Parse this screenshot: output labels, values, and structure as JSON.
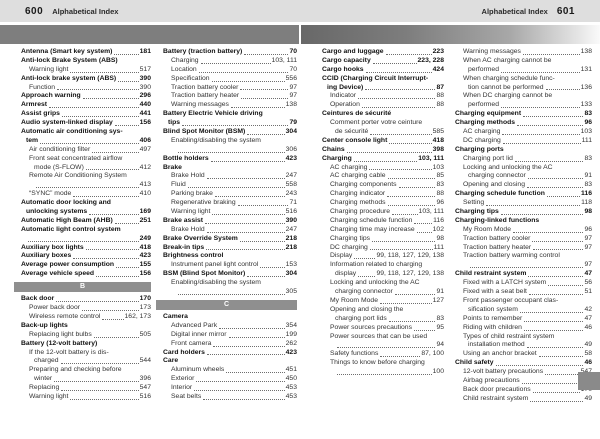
{
  "header": {
    "left_page_number": "600",
    "left_title": "Alphabetical Index",
    "right_title": "Alphabetical Index",
    "right_page_number": "601"
  },
  "colors": {
    "header_strip_bg": "#dedede",
    "band_left_gray": "#7e7e7e",
    "band_right_gradient_start": "#686868",
    "section_bar_gray": "#8f8f8f",
    "thumb_tab_gray": "#8a8a8a",
    "text_color": "#222222"
  },
  "sections_visible": [
    "B",
    "C"
  ],
  "columns": [
    [
      {
        "t": "Antenna (Smart key system)",
        "p": "181",
        "b": 1,
        "i": 0
      },
      {
        "t": "Anti-lock Brake System (ABS)",
        "b": 1,
        "i": 0
      },
      {
        "t": "Warning light",
        "p": "517",
        "b": 0,
        "i": 2
      },
      {
        "t": "Anti-lock brake system (ABS)",
        "p": "390",
        "b": 1,
        "i": 0
      },
      {
        "t": "Function",
        "p": "390",
        "b": 0,
        "i": 2
      },
      {
        "t": "Approach warning",
        "p": "296",
        "b": 1,
        "i": 0
      },
      {
        "t": "Armrest",
        "p": "440",
        "b": 1,
        "i": 0
      },
      {
        "t": "Assist grips",
        "p": "441",
        "b": 1,
        "i": 0
      },
      {
        "t": "Audio system-linked display",
        "p": "156",
        "b": 1,
        "i": 0
      },
      {
        "t": "Automatic air conditioning sys-",
        "b": 1,
        "i": 0
      },
      {
        "t": "tem",
        "p": "406",
        "b": 1,
        "i": 1
      },
      {
        "t": "Air conditioning filter",
        "p": "497",
        "b": 0,
        "i": 2
      },
      {
        "t": "Front seat concentrated airflow",
        "b": 0,
        "i": 2
      },
      {
        "t": "mode (S-FLOW)",
        "p": "412",
        "b": 0,
        "i": 3
      },
      {
        "t": "Remote Air Conditioning System",
        "b": 0,
        "i": 2
      },
      {
        "t": "",
        "p": "413",
        "b": 0,
        "i": 3
      },
      {
        "t": "“SYNC” mode",
        "p": "410",
        "b": 0,
        "i": 2
      },
      {
        "t": "Automatic door locking and",
        "b": 1,
        "i": 0
      },
      {
        "t": "unlocking systems",
        "p": "169",
        "b": 1,
        "i": 1
      },
      {
        "t": "Automatic High Beam (AHB)",
        "p": "251",
        "b": 1,
        "i": 0
      },
      {
        "t": "Automatic light control system",
        "b": 1,
        "i": 0
      },
      {
        "t": "",
        "p": "249",
        "b": 1,
        "i": 1
      },
      {
        "t": "Auxiliary box lights",
        "p": "418",
        "b": 1,
        "i": 0
      },
      {
        "t": "Auxiliary boxes",
        "p": "423",
        "b": 1,
        "i": 0
      },
      {
        "t": "Average power consumption",
        "p": "155",
        "b": 1,
        "i": 0
      },
      {
        "t": "Average vehicle speed",
        "p": "156",
        "b": 1,
        "i": 0
      },
      {
        "sec": "B"
      },
      {
        "t": "Back door",
        "p": "170",
        "b": 1,
        "i": 0
      },
      {
        "t": "Power back door",
        "p": "173",
        "b": 0,
        "i": 2
      },
      {
        "t": "Wireless remote control",
        "p": "162, 173",
        "b": 0,
        "i": 2
      },
      {
        "t": "Back-up lights",
        "b": 1,
        "i": 0
      },
      {
        "t": "Replacing light bulbs",
        "p": "505",
        "b": 0,
        "i": 2
      },
      {
        "t": "Battery (12-volt battery)",
        "b": 1,
        "i": 0
      },
      {
        "t": "If the 12-volt battery is dis-",
        "b": 0,
        "i": 2
      },
      {
        "t": "charged",
        "p": "544",
        "b": 0,
        "i": 3
      },
      {
        "t": "Preparing and checking before",
        "b": 0,
        "i": 2
      },
      {
        "t": "winter",
        "p": "396",
        "b": 0,
        "i": 3
      },
      {
        "t": "Replacing",
        "p": "547",
        "b": 0,
        "i": 2
      },
      {
        "t": "Warning light",
        "p": "516",
        "b": 0,
        "i": 2
      }
    ],
    [
      {
        "t": "Battery (traction battery)",
        "p": "70",
        "b": 1,
        "i": 0
      },
      {
        "t": "Charging",
        "p": "103, 111",
        "b": 0,
        "i": 2
      },
      {
        "t": "Location",
        "p": "70",
        "b": 0,
        "i": 2
      },
      {
        "t": "Specification",
        "p": "556",
        "b": 0,
        "i": 2
      },
      {
        "t": "Traction battery cooler",
        "p": "97",
        "b": 0,
        "i": 2
      },
      {
        "t": "Traction battery heater",
        "p": "97",
        "b": 0,
        "i": 2
      },
      {
        "t": "Warning messages",
        "p": "138",
        "b": 0,
        "i": 2
      },
      {
        "t": "Battery Electric Vehicle driving",
        "b": 1,
        "i": 0
      },
      {
        "t": "tips",
        "p": "79",
        "b": 1,
        "i": 1
      },
      {
        "t": "Blind Spot Monitor (BSM)",
        "p": "304",
        "b": 1,
        "i": 0
      },
      {
        "t": "Enabling/disabling the system",
        "b": 0,
        "i": 2
      },
      {
        "t": "",
        "p": "306",
        "b": 0,
        "i": 3
      },
      {
        "t": "Bottle holders",
        "p": "423",
        "b": 1,
        "i": 0
      },
      {
        "t": "Brake",
        "b": 1,
        "i": 0
      },
      {
        "t": "Brake Hold",
        "p": "247",
        "b": 0,
        "i": 2
      },
      {
        "t": "Fluid",
        "p": "558",
        "b": 0,
        "i": 2
      },
      {
        "t": "Parking brake",
        "p": "243",
        "b": 0,
        "i": 2
      },
      {
        "t": "Regenerative braking",
        "p": "71",
        "b": 0,
        "i": 2
      },
      {
        "t": "Warning light",
        "p": "516",
        "b": 0,
        "i": 2
      },
      {
        "t": "Brake assist",
        "p": "390",
        "b": 1,
        "i": 0
      },
      {
        "t": "Brake Hold",
        "p": "247",
        "b": 0,
        "i": 2
      },
      {
        "t": "Brake Override System",
        "p": "218",
        "b": 1,
        "i": 0
      },
      {
        "t": "Break-in tips",
        "p": "218",
        "b": 1,
        "i": 0
      },
      {
        "t": "Brightness control",
        "b": 1,
        "i": 0
      },
      {
        "t": "Instrument panel light control",
        "p": "153",
        "b": 0,
        "i": 2
      },
      {
        "t": "BSM (Blind Spot Monitor)",
        "p": "304",
        "b": 1,
        "i": 0
      },
      {
        "t": "Enabling/disabling the system",
        "b": 0,
        "i": 2
      },
      {
        "t": "",
        "p": "305",
        "b": 0,
        "i": 3
      },
      {
        "sec": "C"
      },
      {
        "t": "Camera",
        "b": 1,
        "i": 0
      },
      {
        "t": "Advanced Park",
        "p": "354",
        "b": 0,
        "i": 2
      },
      {
        "t": "Digital inner mirror",
        "p": "199",
        "b": 0,
        "i": 2
      },
      {
        "t": "Front camera",
        "p": "262",
        "b": 0,
        "i": 2
      },
      {
        "t": "Card holders",
        "p": "423",
        "b": 1,
        "i": 0
      },
      {
        "t": "Care",
        "b": 1,
        "i": 0
      },
      {
        "t": "Aluminum wheels",
        "p": "451",
        "b": 0,
        "i": 2
      },
      {
        "t": "Exterior",
        "p": "450",
        "b": 0,
        "i": 2
      },
      {
        "t": "Interior",
        "p": "453",
        "b": 0,
        "i": 2
      },
      {
        "t": "Seat belts",
        "p": "453",
        "b": 0,
        "i": 2
      }
    ],
    [
      {
        "t": "Cargo and luggage",
        "p": "223",
        "b": 1,
        "i": 0
      },
      {
        "t": "Cargo capacity",
        "p": "223, 228",
        "b": 1,
        "i": 0
      },
      {
        "t": "Cargo hooks",
        "p": "424",
        "b": 1,
        "i": 0
      },
      {
        "t": "CCID (Charging Circuit Interrupt-",
        "b": 1,
        "i": 0
      },
      {
        "t": "ing Device)",
        "p": "87",
        "b": 1,
        "i": 1
      },
      {
        "t": "Indicator",
        "p": "88",
        "b": 0,
        "i": 2
      },
      {
        "t": "Operation",
        "p": "88",
        "b": 0,
        "i": 2
      },
      {
        "t": "Ceintures de sécurité",
        "b": 1,
        "i": 0
      },
      {
        "t": "Comment porter votre ceinture",
        "b": 0,
        "i": 2
      },
      {
        "t": "de sécurité",
        "p": "585",
        "b": 0,
        "i": 3
      },
      {
        "t": "Center console light",
        "p": "418",
        "b": 1,
        "i": 0
      },
      {
        "t": "Chains",
        "p": "398",
        "b": 1,
        "i": 0
      },
      {
        "t": "Charging",
        "p": "103, 111",
        "b": 1,
        "i": 0
      },
      {
        "t": "AC charging",
        "p": "103",
        "b": 0,
        "i": 2
      },
      {
        "t": "AC charging cable",
        "p": "85",
        "b": 0,
        "i": 2
      },
      {
        "t": "Charging components",
        "p": "83",
        "b": 0,
        "i": 2
      },
      {
        "t": "Charging indicator",
        "p": "88",
        "b": 0,
        "i": 2
      },
      {
        "t": "Charging methods",
        "p": "96",
        "b": 0,
        "i": 2
      },
      {
        "t": "Charging procedure",
        "p": "103, 111",
        "b": 0,
        "i": 2
      },
      {
        "t": "Charging schedule function",
        "p": "116",
        "b": 0,
        "i": 2
      },
      {
        "t": "Charging time may increase",
        "p": "102",
        "b": 0,
        "i": 2
      },
      {
        "t": "Charging tips",
        "p": "98",
        "b": 0,
        "i": 2
      },
      {
        "t": "DC charging",
        "p": "111",
        "b": 0,
        "i": 2
      },
      {
        "t": "Display",
        "p": "99, 118, 127, 129, 138",
        "b": 0,
        "i": 2
      },
      {
        "t": "Information related to charging",
        "b": 0,
        "i": 2
      },
      {
        "t": "display",
        "p": "99, 118, 127, 129, 138",
        "b": 0,
        "i": 3
      },
      {
        "t": "Locking and unlocking the AC",
        "b": 0,
        "i": 2
      },
      {
        "t": "charging connector",
        "p": "91",
        "b": 0,
        "i": 3
      },
      {
        "t": "My Room Mode",
        "p": "127",
        "b": 0,
        "i": 2
      },
      {
        "t": "Opening and closing the",
        "b": 0,
        "i": 2
      },
      {
        "t": "charging port lids",
        "p": "83",
        "b": 0,
        "i": 3
      },
      {
        "t": "Power sources precautions",
        "p": "95",
        "b": 0,
        "i": 2
      },
      {
        "t": "Power sources that can be used",
        "b": 0,
        "i": 2
      },
      {
        "t": "",
        "p": "94",
        "b": 0,
        "i": 3
      },
      {
        "t": "Safety functions",
        "p": "87, 100",
        "b": 0,
        "i": 2
      },
      {
        "t": "Things to know before charging",
        "b": 0,
        "i": 2
      },
      {
        "t": "",
        "p": "100",
        "b": 0,
        "i": 3
      }
    ],
    [
      {
        "t": "Warning messages",
        "p": "138",
        "b": 0,
        "i": 2
      },
      {
        "t": "When AC charging cannot be",
        "b": 0,
        "i": 2
      },
      {
        "t": "performed",
        "p": "131",
        "b": 0,
        "i": 3
      },
      {
        "t": "When charging schedule func-",
        "b": 0,
        "i": 2
      },
      {
        "t": "tion cannot be performed",
        "p": "136",
        "b": 0,
        "i": 3
      },
      {
        "t": "When DC charging cannot be",
        "b": 0,
        "i": 2
      },
      {
        "t": "performed",
        "p": "133",
        "b": 0,
        "i": 3
      },
      {
        "t": "Charging equipment",
        "p": "83",
        "b": 1,
        "i": 0
      },
      {
        "t": "Charging methods",
        "p": "96",
        "b": 1,
        "i": 0
      },
      {
        "t": "AC charging",
        "p": "103",
        "b": 0,
        "i": 2
      },
      {
        "t": "DC charging",
        "p": "111",
        "b": 0,
        "i": 2
      },
      {
        "t": "Charging ports",
        "b": 1,
        "i": 0
      },
      {
        "t": "Charging port lid",
        "p": "83",
        "b": 0,
        "i": 2
      },
      {
        "t": "Locking and unlocking the AC",
        "b": 0,
        "i": 2
      },
      {
        "t": "charging connector",
        "p": "91",
        "b": 0,
        "i": 3
      },
      {
        "t": "Opening and closing",
        "p": "83",
        "b": 0,
        "i": 2
      },
      {
        "t": "Charging schedule function",
        "p": "116",
        "b": 1,
        "i": 0
      },
      {
        "t": "Setting",
        "p": "118",
        "b": 0,
        "i": 2
      },
      {
        "t": "Charging tips",
        "p": "98",
        "b": 1,
        "i": 0
      },
      {
        "t": "Charging-linked functions",
        "b": 1,
        "i": 0
      },
      {
        "t": "My Room Mode",
        "p": "96",
        "b": 0,
        "i": 2
      },
      {
        "t": "Traction battery cooler",
        "p": "97",
        "b": 0,
        "i": 2
      },
      {
        "t": "Traction battery heater",
        "p": "97",
        "b": 0,
        "i": 2
      },
      {
        "t": "Traction battery warming control",
        "b": 0,
        "i": 2
      },
      {
        "t": "",
        "p": "97",
        "b": 0,
        "i": 3
      },
      {
        "t": "Child restraint system",
        "p": "47",
        "b": 1,
        "i": 0
      },
      {
        "t": "Fixed with a LATCH system",
        "p": "56",
        "b": 0,
        "i": 2
      },
      {
        "t": "Fixed with a seat belt",
        "p": "51",
        "b": 0,
        "i": 2
      },
      {
        "t": "Front passenger occupant clas-",
        "b": 0,
        "i": 2
      },
      {
        "t": "sification system",
        "p": "42",
        "b": 0,
        "i": 3
      },
      {
        "t": "Points to remember",
        "p": "47",
        "b": 0,
        "i": 2
      },
      {
        "t": "Riding with children",
        "p": "46",
        "b": 0,
        "i": 2
      },
      {
        "t": "Types of child restraint system",
        "b": 0,
        "i": 2
      },
      {
        "t": "installation method",
        "p": "49",
        "b": 0,
        "i": 3
      },
      {
        "t": "Using an anchor bracket",
        "p": "58",
        "b": 0,
        "i": 2
      },
      {
        "t": "Child safety",
        "p": "46",
        "b": 1,
        "i": 0
      },
      {
        "t": "12-volt battery precautions",
        "p": "547",
        "b": 0,
        "i": 2
      },
      {
        "t": "Airbag precautions",
        "p": "38",
        "b": 0,
        "i": 2
      },
      {
        "t": "Back door precautions",
        "p": "170",
        "b": 0,
        "i": 2
      },
      {
        "t": "Child restraint system",
        "p": "49",
        "b": 0,
        "i": 2
      }
    ]
  ]
}
